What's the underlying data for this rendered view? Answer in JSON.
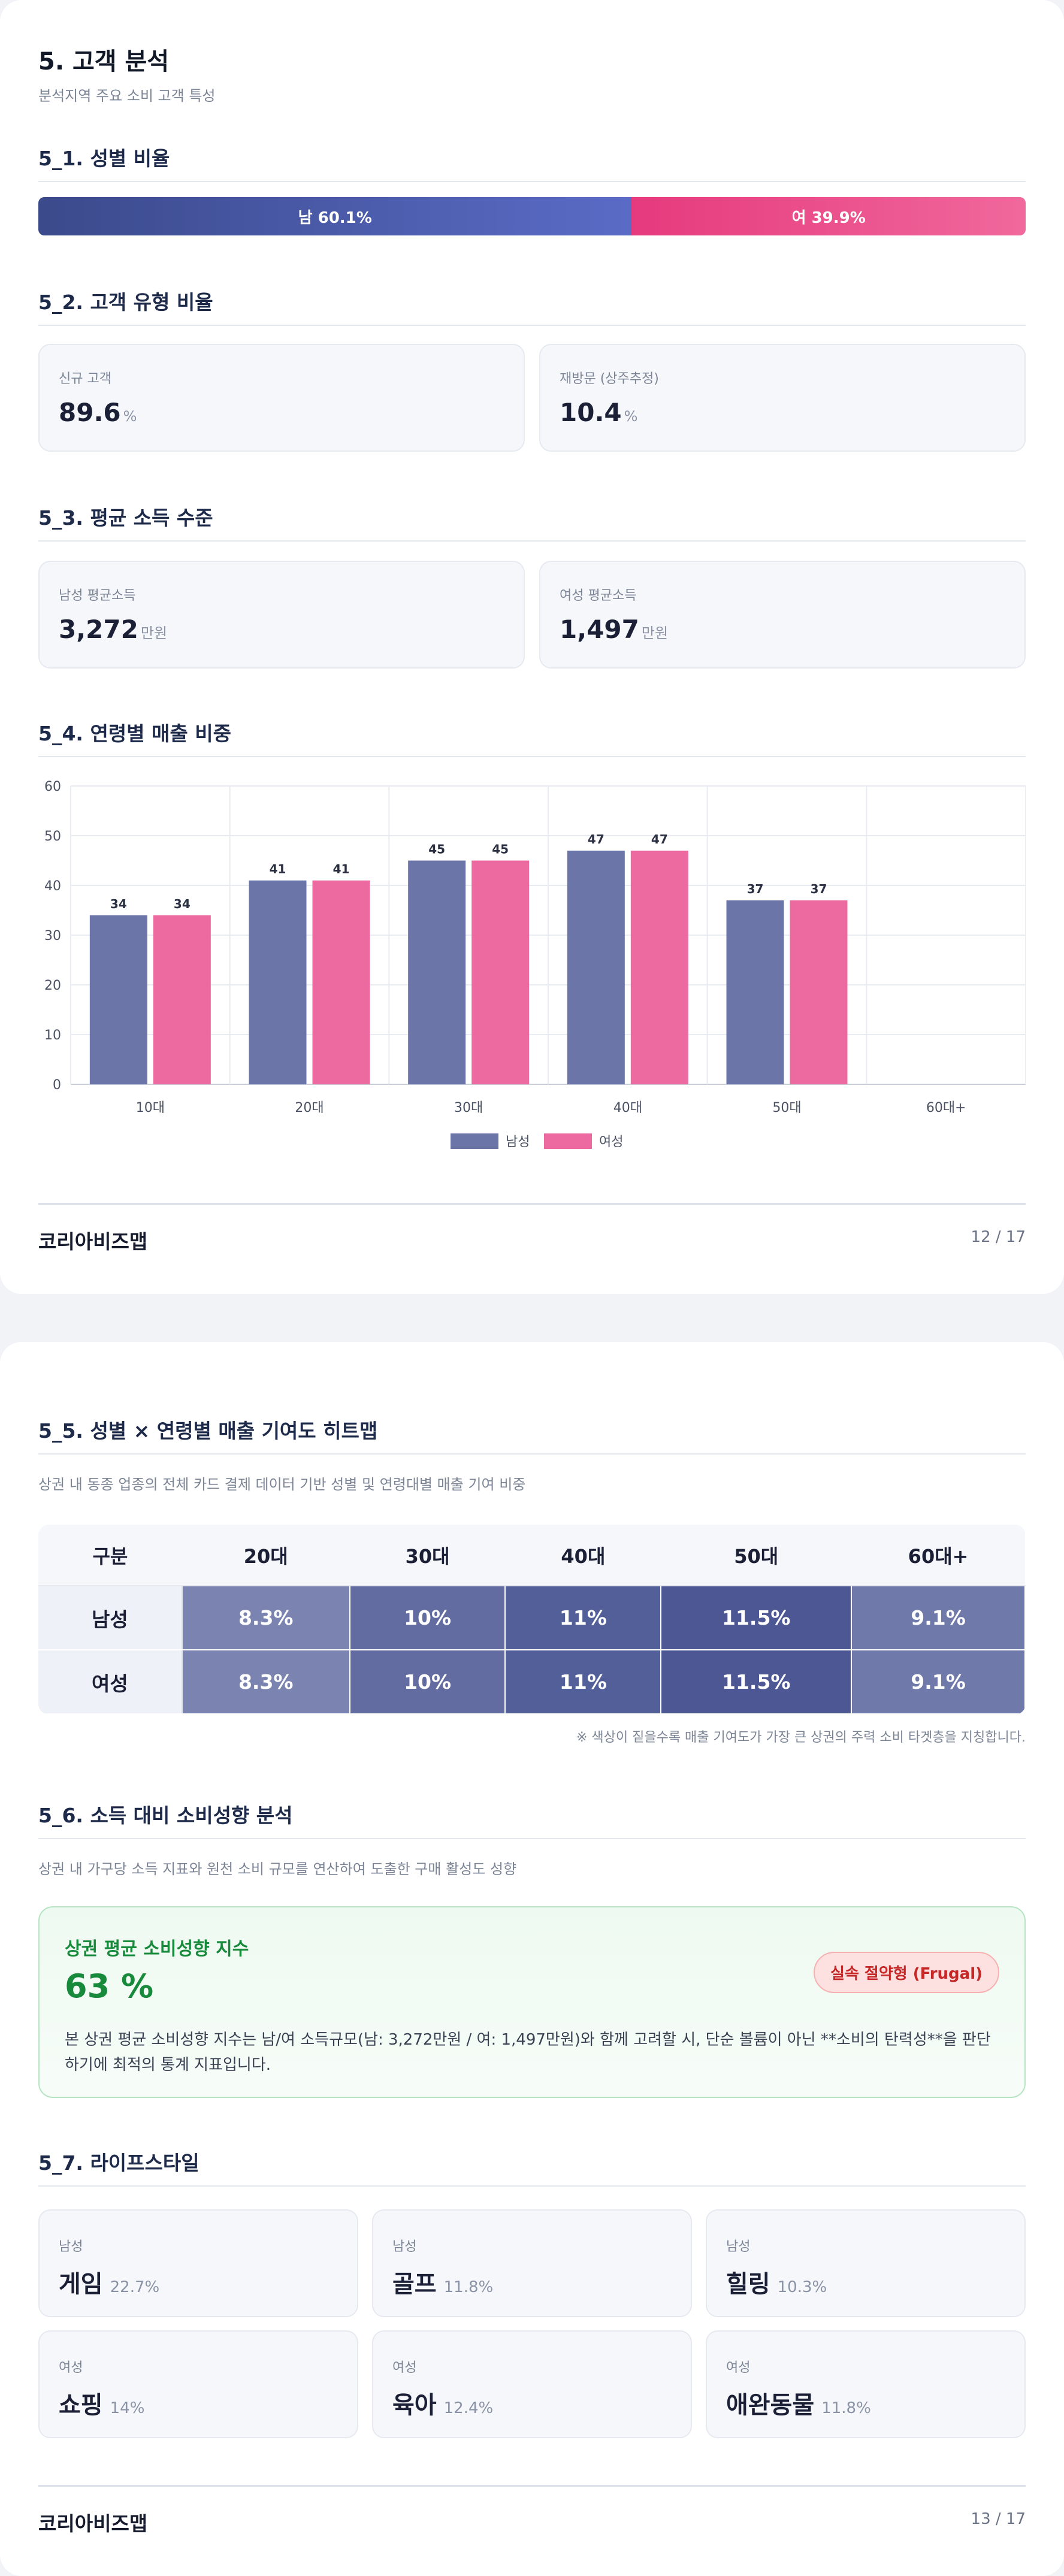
{
  "page1": {
    "section5": {
      "title": "5. 고객 분석",
      "subtitle": "분석지역 주요 소비 고객 특성"
    },
    "gender": {
      "title": "5_1. 성별 비율",
      "male_label": "남 60.1%",
      "female_label": "여 39.9%",
      "male_pct": 60.1,
      "female_pct": 39.9,
      "male_color": "#4a59a8",
      "female_color": "#ea4d8b"
    },
    "customer_type": {
      "title": "5_2. 고객 유형 비율",
      "new": {
        "label": "신규 고객",
        "value": "89.6",
        "unit": "%"
      },
      "revisit": {
        "label": "재방문 (상주추정)",
        "value": "10.4",
        "unit": "%"
      }
    },
    "income": {
      "title": "5_3. 평균 소득 수준",
      "male": {
        "label": "남성 평균소득",
        "value": "3,272",
        "unit": "만원"
      },
      "female": {
        "label": "여성 평균소득",
        "value": "1,497",
        "unit": "만원"
      }
    },
    "age_sales": {
      "title": "5_4. 연령별 매출 비중"
    },
    "footer": {
      "brand": "코리아비즈맵",
      "page": "12 / 17"
    }
  },
  "chart_data": {
    "type": "bar",
    "categories": [
      "10대",
      "20대",
      "30대",
      "40대",
      "50대",
      "60대+"
    ],
    "series": [
      {
        "name": "남성",
        "values": [
          34,
          41,
          45,
          47,
          37,
          null
        ],
        "color": "#6b75a8"
      },
      {
        "name": "여성",
        "values": [
          34,
          41,
          45,
          47,
          37,
          null
        ],
        "color": "#ec6aa0"
      }
    ],
    "title": "",
    "xlabel": "",
    "ylabel": "",
    "ylim": [
      0,
      60
    ],
    "yticks": [
      "0",
      "10",
      "20",
      "30",
      "40",
      "50",
      "60"
    ],
    "grid": true,
    "legend": "bottom-center"
  },
  "page2": {
    "heatmap": {
      "title": "5_5. 성별 × 연령별 매출 기여도 히트맵",
      "subtitle": "상권 내 동종 업종의 전체 카드 결제 데이터 기반 성별 및 연령대별 매출 기여 비중",
      "headers": [
        "구분",
        "20대",
        "30대",
        "40대",
        "50대",
        "60대+"
      ],
      "rows": [
        {
          "label": "남성",
          "cells": [
            "8.3%",
            "10%",
            "11%",
            "11.5%",
            "9.1%"
          ],
          "values": [
            8.3,
            10,
            11,
            11.5,
            9.1
          ]
        },
        {
          "label": "여성",
          "cells": [
            "8.3%",
            "10%",
            "11%",
            "11.5%",
            "9.1%"
          ],
          "values": [
            8.3,
            10,
            11,
            11.5,
            9.1
          ]
        }
      ],
      "note": "※ 색상이 짙을수록 매출 기여도가 가장 큰 상권의 주력 소비 타겟층을 지칭합니다."
    },
    "consumption": {
      "title": "5_6. 소득 대비 소비성향 분석",
      "subtitle": "상권 내 가구당 소득 지표와 원천 소비 규모를 연산하여 도출한 구매 활성도 성향",
      "card_title": "상권 평균 소비성향 지수",
      "value": "63 %",
      "badge": "실속 절약형 (Frugal)",
      "description": "본 상권 평균 소비성향 지수는 남/여 소득규모(남: 3,272만원 / 여: 1,497만원)와 함께 고려할 시, 단순 볼륨이 아닌 **소비의 탄력성**을 판단하기에 최적의 통계 지표입니다."
    },
    "lifestyle": {
      "title": "5_7. 라이프스타일",
      "items": [
        {
          "gender": "남성",
          "name": "게임",
          "pct": "22.7%"
        },
        {
          "gender": "남성",
          "name": "골프",
          "pct": "11.8%"
        },
        {
          "gender": "남성",
          "name": "힐링",
          "pct": "10.3%"
        },
        {
          "gender": "여성",
          "name": "쇼핑",
          "pct": "14%"
        },
        {
          "gender": "여성",
          "name": "육아",
          "pct": "12.4%"
        },
        {
          "gender": "여성",
          "name": "애완동물",
          "pct": "11.8%"
        }
      ]
    },
    "footer": {
      "brand": "코리아비즈맵",
      "page": "13 / 17"
    }
  }
}
